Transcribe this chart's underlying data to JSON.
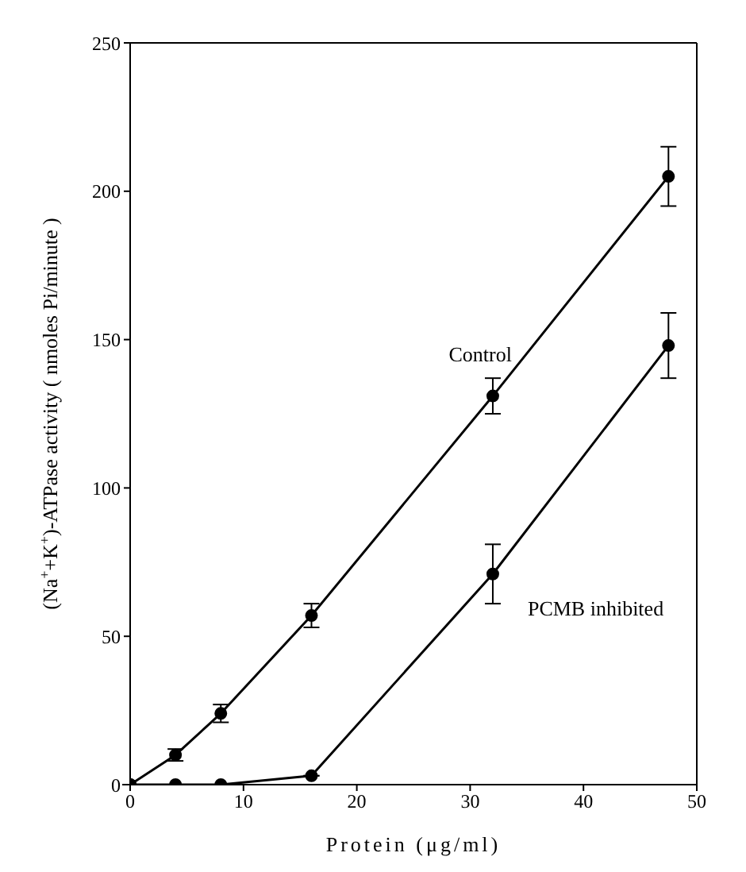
{
  "chart_data": {
    "type": "line",
    "xlabel": "Protein  (μg/ml)",
    "ylabel": "(Na$^{+}$+K$^{+}$)-ATPase activity  ( nmoles Pi/minute )",
    "x": [
      0,
      4,
      8,
      16,
      32,
      47.5
    ],
    "series": [
      {
        "name": "Control",
        "color": "#000000",
        "values": [
          0,
          10,
          24,
          57,
          131,
          205
        ],
        "errors": [
          null,
          2,
          3,
          4,
          6,
          10
        ]
      },
      {
        "name": "PCMB inhibited",
        "color": "#000000",
        "values": [
          0,
          0,
          0,
          3,
          71,
          148
        ],
        "errors": [
          null,
          null,
          null,
          null,
          10,
          11
        ]
      }
    ],
    "xlim": [
      0,
      50
    ],
    "xticks": [
      0,
      10,
      20,
      30,
      40,
      50
    ],
    "ylim": [
      0,
      250
    ],
    "yticks": [
      0,
      50,
      100,
      150,
      200,
      250
    ],
    "grid": false,
    "legend": false,
    "marker": "circle",
    "line_style": "solid"
  }
}
